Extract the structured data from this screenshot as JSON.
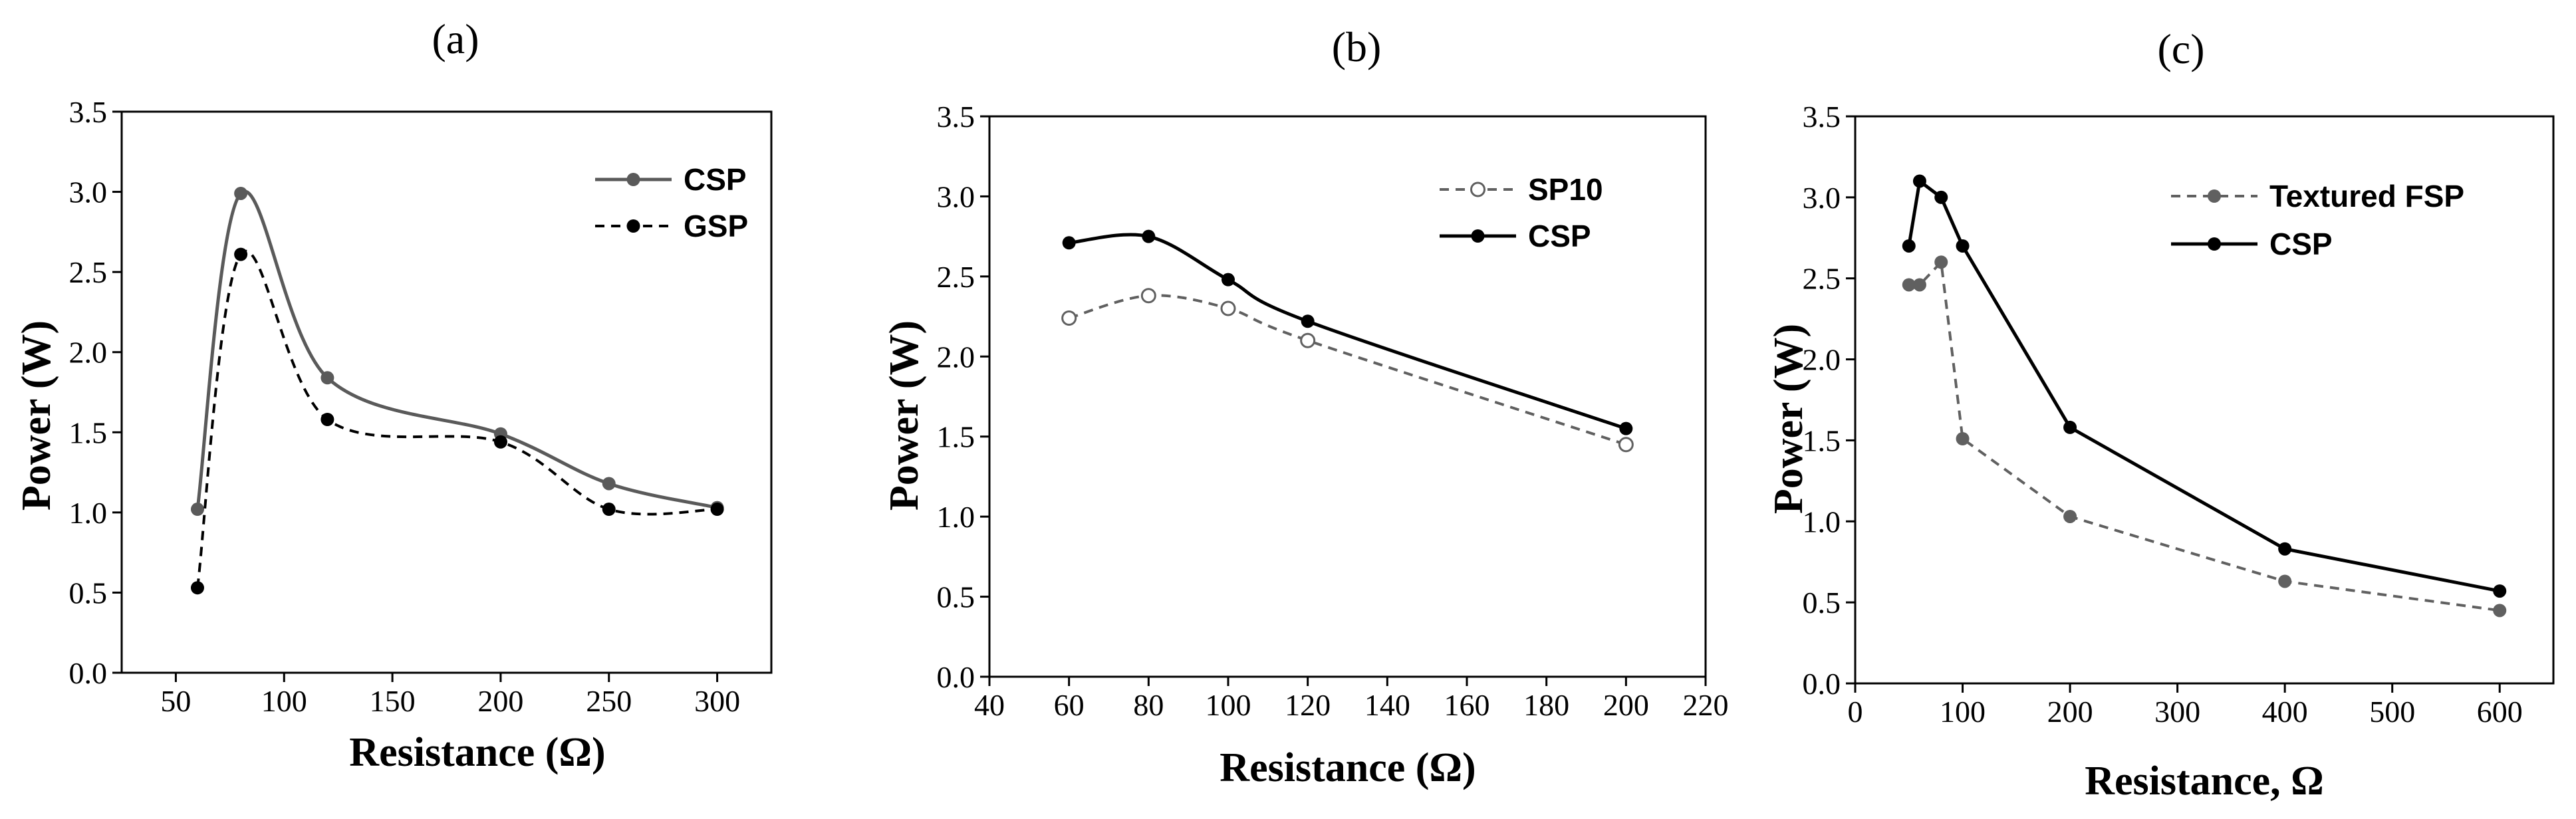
{
  "chart_data": [
    {
      "type": "line",
      "panel_label": "(a)",
      "xlabel": "Resistance (Ω)",
      "ylabel": "Power (W)",
      "xlim": [
        25,
        325
      ],
      "ylim": [
        0,
        3.5
      ],
      "xticks": [
        50,
        100,
        150,
        200,
        250,
        300
      ],
      "yticks": [
        0.0,
        0.5,
        1.0,
        1.5,
        2.0,
        2.5,
        3.0,
        3.5
      ],
      "legend_position": "top-right",
      "series": [
        {
          "name": "CSP",
          "color": "#5a5a5a",
          "dashed": false,
          "smooth": true,
          "marker": "filled",
          "x": [
            60,
            80,
            120,
            200,
            250,
            300
          ],
          "y": [
            1.02,
            2.99,
            1.84,
            1.49,
            1.18,
            1.03
          ]
        },
        {
          "name": "GSP",
          "color": "#000000",
          "dashed": true,
          "smooth": true,
          "marker": "filled",
          "x": [
            60,
            80,
            120,
            200,
            250,
            300
          ],
          "y": [
            0.53,
            2.61,
            1.58,
            1.44,
            1.02,
            1.02
          ]
        }
      ]
    },
    {
      "type": "line",
      "panel_label": "(b)",
      "xlabel": "Resistance (Ω)",
      "ylabel": "Power (W)",
      "xlim": [
        40,
        220
      ],
      "ylim": [
        0,
        3.5
      ],
      "xticks": [
        40,
        60,
        80,
        100,
        120,
        140,
        160,
        180,
        200,
        220
      ],
      "yticks": [
        0.0,
        0.5,
        1.0,
        1.5,
        2.0,
        2.5,
        3.0,
        3.5
      ],
      "legend_position": "top-right",
      "series": [
        {
          "name": "SP10",
          "color": "#606060",
          "dashed": true,
          "smooth": true,
          "marker": "hollow",
          "x": [
            60,
            80,
            100,
            120,
            200
          ],
          "y": [
            2.24,
            2.38,
            2.3,
            2.1,
            1.45
          ]
        },
        {
          "name": "CSP",
          "color": "#000000",
          "dashed": false,
          "smooth": true,
          "marker": "filled",
          "x": [
            60,
            80,
            100,
            120,
            200
          ],
          "y": [
            2.71,
            2.75,
            2.48,
            2.22,
            1.55
          ]
        }
      ]
    },
    {
      "type": "line",
      "panel_label": "(c)",
      "xlabel": "Resistance, Ω",
      "ylabel": "Power (W)",
      "xlim": [
        0,
        650
      ],
      "ylim": [
        0,
        3.5
      ],
      "xticks": [
        0,
        100,
        200,
        300,
        400,
        500,
        600
      ],
      "yticks": [
        0.0,
        0.5,
        1.0,
        1.5,
        2.0,
        2.5,
        3.0,
        3.5
      ],
      "legend_position": "top-right",
      "series": [
        {
          "name": "Textured FSP",
          "color": "#606060",
          "dashed": true,
          "smooth": false,
          "marker": "filled",
          "x": [
            50,
            60,
            80,
            100,
            200,
            400,
            600
          ],
          "y": [
            2.46,
            2.46,
            2.6,
            1.51,
            1.03,
            0.63,
            0.45
          ]
        },
        {
          "name": "CSP",
          "color": "#000000",
          "dashed": false,
          "smooth": false,
          "marker": "filled",
          "x": [
            50,
            60,
            80,
            100,
            200,
            400,
            600
          ],
          "y": [
            2.7,
            3.1,
            3.0,
            2.7,
            1.58,
            0.83,
            0.57
          ]
        }
      ]
    }
  ]
}
